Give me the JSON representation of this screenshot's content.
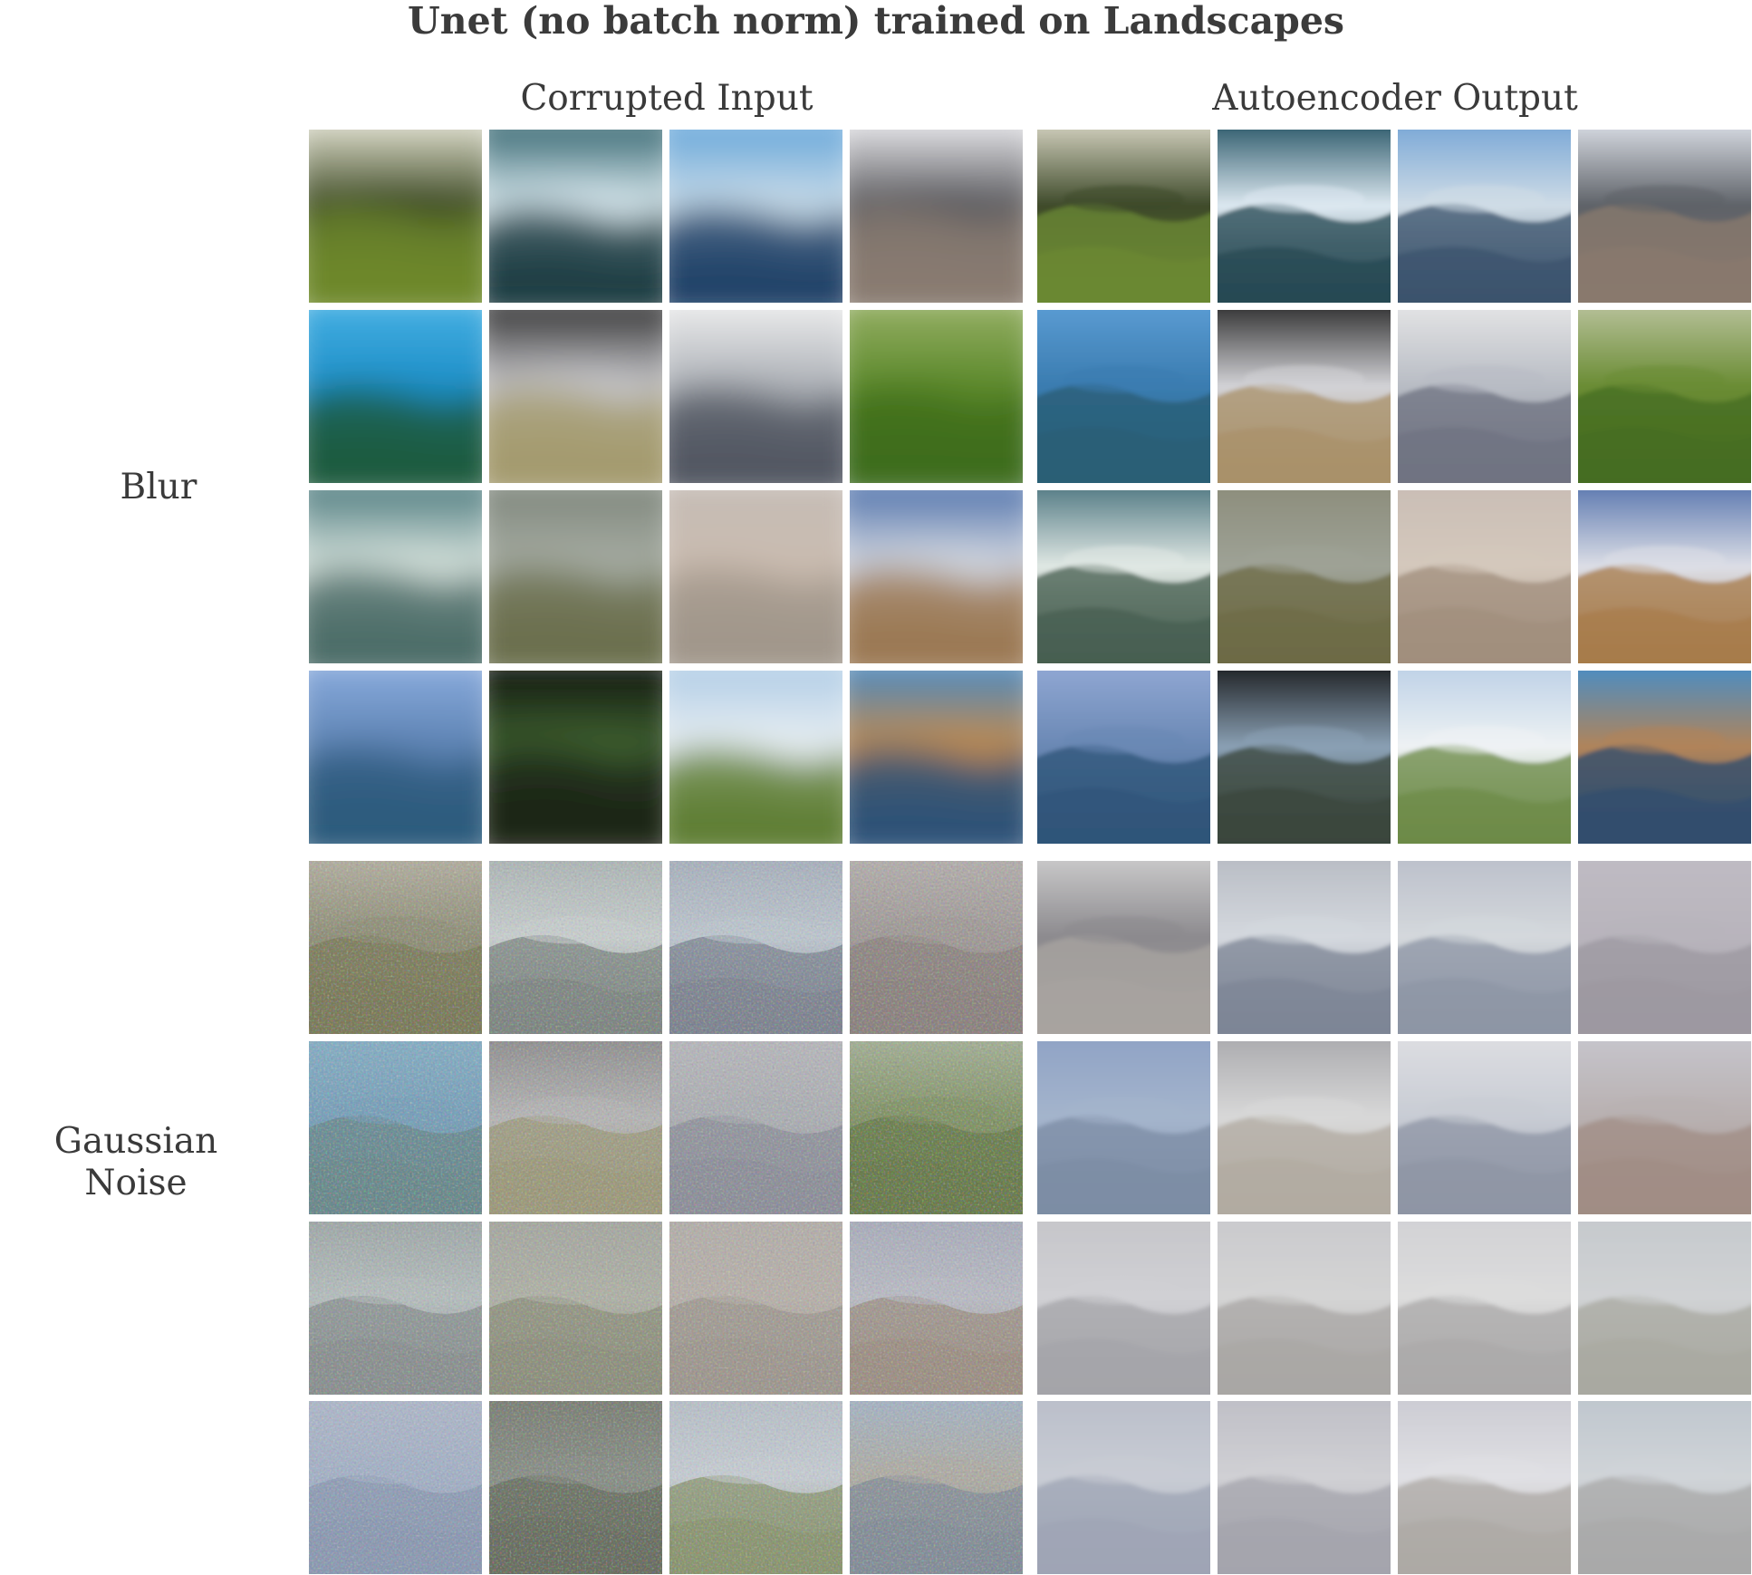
{
  "title": "Unet (no batch norm) trained on Landscapes",
  "column_headers": {
    "left": "Corrupted Input",
    "right": "Autoencoder Output"
  },
  "row_groups": [
    {
      "label": "Blur",
      "corruption": "blur",
      "rows": 4
    },
    {
      "label": "Gaussian Noise",
      "corruption": "noise",
      "rows": 4
    }
  ],
  "tiles": {
    "blur": [
      [
        {
          "sky": "#f0eee0",
          "land": "#6f8a2c",
          "mid": "#3d4a22"
        },
        {
          "sky": "#1d5560",
          "land": "#1a3a40",
          "mid": "#d8e8ee"
        },
        {
          "sky": "#5aa0d8",
          "land": "#1e3f66",
          "mid": "#c8dbe8"
        },
        {
          "sky": "#f4f4f8",
          "land": "#8a7c72",
          "mid": "#5a5a5e"
        }
      ],
      [
        {
          "sky": "#49b3e6",
          "land": "#1a5a3c",
          "mid": "#1e8fc8"
        },
        {
          "sky": "#1a1a1a",
          "land": "#a39a6c",
          "mid": "#c8c8cc"
        },
        {
          "sky": "#f3f3f3",
          "land": "#505560",
          "mid": "#aeb2b8"
        },
        {
          "sky": "#9bb36a",
          "land": "#3e6c1c",
          "mid": "#5d8a2c"
        }
      ],
      [
        {
          "sky": "#3c6f74",
          "land": "#4a6a66",
          "mid": "#d6e2dc"
        },
        {
          "sky": "#7a8278",
          "land": "#6a6e4c",
          "mid": "#a6aca2"
        },
        {
          "sky": "#c4bcb6",
          "land": "#a0968a",
          "mid": "#cabcb0"
        },
        {
          "sky": "#3e66a6",
          "land": "#9a7650",
          "mid": "#d4d8e0"
        }
      ],
      [
        {
          "sky": "#8fb0e2",
          "land": "#2c5a7c",
          "mid": "#5e84b4"
        },
        {
          "sky": "#0a0a0a",
          "land": "#1c2418",
          "mid": "#3e6030"
        },
        {
          "sky": "#a8c8e4",
          "land": "#5c7c30",
          "mid": "#e8eef2"
        },
        {
          "sky": "#3a8ad0",
          "land": "#2a5078",
          "mid": "#c08a4c"
        }
      ]
    ],
    "blur_out": [
      [
        {
          "sky": "#e6e2d2",
          "land": "#6c8a34",
          "mid": "#3e4a2a"
        },
        {
          "sky": "#17485a",
          "land": "#234650",
          "mid": "#dce8f0"
        },
        {
          "sky": "#6ea0d4",
          "land": "#38506a",
          "mid": "#cfdce6"
        },
        {
          "sky": "#e8ecf4",
          "land": "#8a7a6e",
          "mid": "#5e6268"
        }
      ],
      [
        {
          "sky": "#5fa0d8",
          "land": "#2a5e74",
          "mid": "#3a7cb0"
        },
        {
          "sky": "#1a1a1a",
          "land": "#a89068",
          "mid": "#d2d2d6"
        },
        {
          "sky": "#eaeaea",
          "land": "#6e7280",
          "mid": "#b8bcc4"
        },
        {
          "sky": "#c2c8a8",
          "land": "#456c22",
          "mid": "#6a8c34"
        }
      ],
      [
        {
          "sky": "#3e6a76",
          "land": "#445c4e",
          "mid": "#e0e8e4"
        },
        {
          "sky": "#8a8a78",
          "land": "#6c6a44",
          "mid": "#9ea296"
        },
        {
          "sky": "#c8bcb4",
          "land": "#a08e7c",
          "mid": "#d4c8bc"
        },
        {
          "sky": "#4a6aa8",
          "land": "#a67a48",
          "mid": "#dcdee6"
        }
      ],
      [
        {
          "sky": "#96acd8",
          "land": "#2e5478",
          "mid": "#6a88b4"
        },
        {
          "sky": "#0e0e0e",
          "land": "#38443a",
          "mid": "#8aa0b4"
        },
        {
          "sky": "#b6cce4",
          "land": "#6a8844",
          "mid": "#eef2f4"
        },
        {
          "sky": "#3a8ed4",
          "land": "#2e4c6e",
          "mid": "#b0845a"
        }
      ]
    ],
    "noise": [
      [
        {
          "sky": "#b8b4a8",
          "land": "#7c7c5c",
          "mid": "#90907a"
        },
        {
          "sky": "#a8b0b0",
          "land": "#7e8682",
          "mid": "#c6cccc"
        },
        {
          "sky": "#a4acb8",
          "land": "#7e8490",
          "mid": "#bcc4cc"
        },
        {
          "sky": "#b6b2b0",
          "land": "#8c8480",
          "mid": "#a09a98"
        }
      ],
      [
        {
          "sky": "#8ab0c4",
          "land": "#6c8a8c",
          "mid": "#7aa0b8"
        },
        {
          "sky": "#8a8a8a",
          "land": "#9c9a7c",
          "mid": "#b4b4b4"
        },
        {
          "sky": "#b8b8bc",
          "land": "#8e909a",
          "mid": "#acaeb2"
        },
        {
          "sky": "#aab4a0",
          "land": "#6a7c4e",
          "mid": "#84946a"
        }
      ],
      [
        {
          "sky": "#9ca4a4",
          "land": "#8a9090",
          "mid": "#b4bcbc"
        },
        {
          "sky": "#a4a6a0",
          "land": "#8e907e",
          "mid": "#aeb0a6"
        },
        {
          "sky": "#b2aeaa",
          "land": "#9e9890",
          "mid": "#b6b0aa"
        },
        {
          "sky": "#a6aab8",
          "land": "#9c9084",
          "mid": "#b8bac2"
        }
      ],
      [
        {
          "sky": "#b0b8c8",
          "land": "#8c9ab0",
          "mid": "#a4b0c4"
        },
        {
          "sky": "#7a7e74",
          "land": "#6a7062",
          "mid": "#8a9088"
        },
        {
          "sky": "#b4bcc4",
          "land": "#8a9470",
          "mid": "#c4cad0"
        },
        {
          "sky": "#a4b4c8",
          "land": "#848e98",
          "mid": "#aeaca4"
        }
      ]
    ],
    "noise_out": [
      [
        {
          "sky": "#d4d4d4",
          "land": "#a8a4a0",
          "mid": "#8c8a8e"
        },
        {
          "sky": "#b4b8c0",
          "land": "#7c8494",
          "mid": "#d4d8de"
        },
        {
          "sky": "#b8bcc8",
          "land": "#8c94a4",
          "mid": "#d4d8dc"
        },
        {
          "sky": "#c0bcc4",
          "land": "#9c98a0",
          "mid": "#b8b4bc"
        }
      ],
      [
        {
          "sky": "#8ca0c4",
          "land": "#7c8ca4",
          "mid": "#a4b4cc"
        },
        {
          "sky": "#a4a4a8",
          "land": "#b0aaa0",
          "mid": "#d8d8d8"
        },
        {
          "sky": "#e0e0e4",
          "land": "#8e94a4",
          "mid": "#c8ccd4"
        },
        {
          "sky": "#c8c8d0",
          "land": "#a08c84",
          "mid": "#b8b0b0"
        }
      ],
      [
        {
          "sky": "#c4c4c8",
          "land": "#a4a4a8",
          "mid": "#d0d0d4"
        },
        {
          "sky": "#c8c8cc",
          "land": "#a8a6a4",
          "mid": "#d4d4d4"
        },
        {
          "sky": "#d0d0d4",
          "land": "#aaa8a8",
          "mid": "#dcdcdc"
        },
        {
          "sky": "#c4c8cc",
          "land": "#a8a8a0",
          "mid": "#d0d2d4"
        }
      ],
      [
        {
          "sky": "#b8bcc8",
          "land": "#9ea4b4",
          "mid": "#c8ccd4"
        },
        {
          "sky": "#bcbcc4",
          "land": "#a4a4ac",
          "mid": "#d0d0d4"
        },
        {
          "sky": "#c8c8d0",
          "land": "#aca8a4",
          "mid": "#e0e0e4"
        },
        {
          "sky": "#bcc4cc",
          "land": "#a8a8a8",
          "mid": "#d0d4d8"
        }
      ]
    ]
  }
}
